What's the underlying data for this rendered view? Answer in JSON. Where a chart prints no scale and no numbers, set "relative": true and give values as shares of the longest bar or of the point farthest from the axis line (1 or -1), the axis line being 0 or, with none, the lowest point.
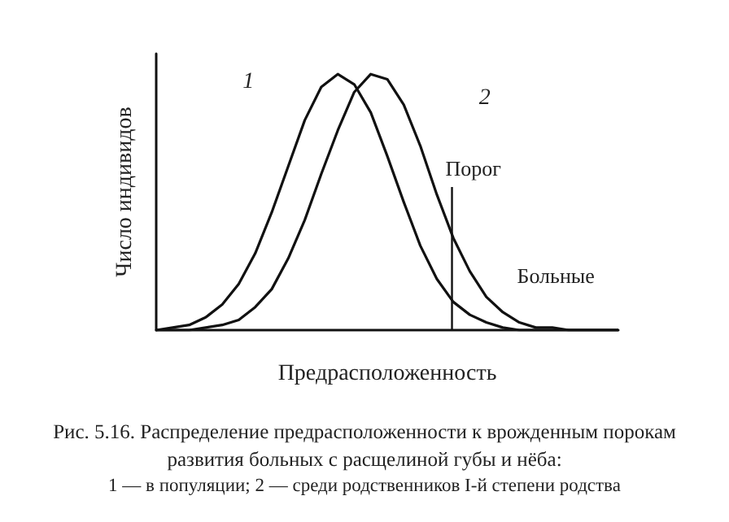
{
  "chart_data": {
    "type": "line",
    "relative": true,
    "xlabel": "Предрасположенность",
    "ylabel": "Число индивидов",
    "categories": [
      null,
      null,
      null,
      null,
      null,
      null,
      null,
      null,
      null,
      null,
      null,
      null,
      null,
      null,
      null,
      null,
      null,
      null,
      null,
      null,
      null,
      null,
      null,
      null,
      null,
      null,
      null,
      null,
      null
    ],
    "series": [
      {
        "name": "1",
        "color": "#111111",
        "values": [
          0,
          0.01,
          0.02,
          0.05,
          0.1,
          0.18,
          0.3,
          0.46,
          0.64,
          0.82,
          0.95,
          1,
          0.96,
          0.85,
          0.68,
          0.5,
          0.33,
          0.2,
          0.11,
          0.06,
          0.03,
          0.01,
          0,
          0,
          0,
          0,
          0,
          0,
          0
        ]
      },
      {
        "name": "2",
        "color": "#111111",
        "values": [
          0,
          0,
          0,
          0.01,
          0.02,
          0.04,
          0.09,
          0.16,
          0.28,
          0.43,
          0.61,
          0.78,
          0.93,
          1,
          0.98,
          0.88,
          0.72,
          0.53,
          0.36,
          0.23,
          0.13,
          0.07,
          0.03,
          0.01,
          0.01,
          0,
          0,
          0,
          0
        ]
      }
    ],
    "annotations": [
      "Порог",
      "Больные",
      "Рис. 5.16. Распределение предрасположенности к врожденным порокам",
      "развития больных с расщелиной губы и нёба:",
      "1 — в популяции; 2 — среди родственников I-й степени родства"
    ],
    "grid": false,
    "legend": false,
    "marker": "none",
    "line_style": "solid"
  }
}
